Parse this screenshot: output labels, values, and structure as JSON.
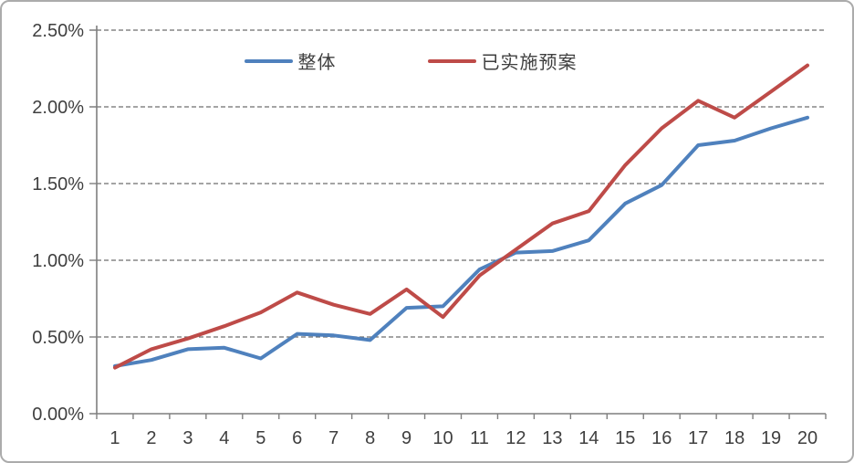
{
  "chart_data": {
    "type": "line",
    "title": "",
    "xlabel": "",
    "ylabel": "",
    "categories": [
      "1",
      "2",
      "3",
      "4",
      "5",
      "6",
      "7",
      "8",
      "9",
      "10",
      "11",
      "12",
      "13",
      "14",
      "15",
      "16",
      "17",
      "18",
      "19",
      "20"
    ],
    "series": [
      {
        "name": "整体",
        "color": "#4F81BD",
        "values": [
          0.31,
          0.35,
          0.42,
          0.43,
          0.36,
          0.52,
          0.51,
          0.48,
          0.69,
          0.7,
          0.94,
          1.05,
          1.06,
          1.13,
          1.37,
          1.49,
          1.75,
          1.78,
          1.86,
          1.93
        ]
      },
      {
        "name": "已实施预案",
        "color": "#BE4B48",
        "values": [
          0.3,
          0.42,
          0.49,
          0.57,
          0.66,
          0.79,
          0.71,
          0.65,
          0.81,
          0.63,
          0.9,
          1.07,
          1.24,
          1.32,
          1.62,
          1.86,
          2.04,
          1.93,
          2.1,
          2.27
        ]
      }
    ],
    "ylim": [
      0,
      2.5
    ],
    "y_tick_values": [
      0,
      0.5,
      1.0,
      1.5,
      2.0,
      2.5
    ],
    "y_tick_labels": [
      "0.00%",
      "0.50%",
      "1.00%",
      "1.50%",
      "2.00%",
      "2.50%"
    ],
    "value_unit": "percent",
    "grid": "horizontal-dashed",
    "legend_position": "top-center"
  },
  "style_colors": {
    "background": "#FFFFFF",
    "frame_border": "#ABABAB",
    "axis_line": "#7F7F7F",
    "gridline": "#6E6E6E",
    "tick_label_text": "#3F3F3F"
  }
}
